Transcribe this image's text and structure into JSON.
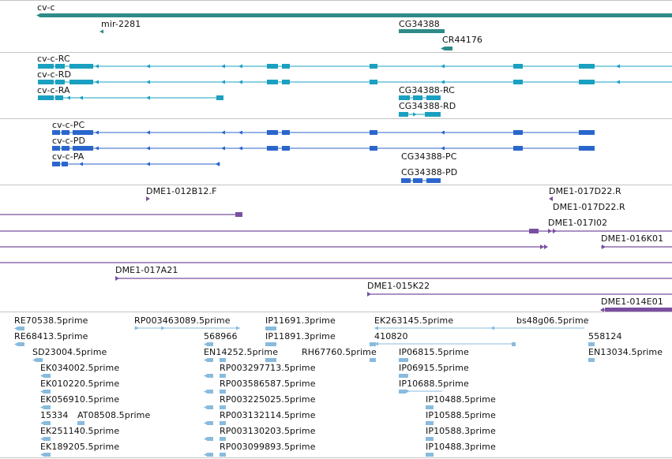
{
  "palette": {
    "gene": "#2e8b87",
    "transcript_rc": "#1aa0c0",
    "transcript_pc": "#2a66cc",
    "clone": "#7a4fa0",
    "est": "#88bbdd",
    "separator": "#c4c4c4"
  },
  "tracks": {
    "gene": {
      "labels": [
        "cv-c",
        "mir-2281",
        "CG34388",
        "CR44176"
      ]
    },
    "transcripts": {
      "labels": [
        "cv-c-RC",
        "cv-c-RD",
        "cv-c-RA",
        "CG34388-RC",
        "CG34388-RD"
      ]
    },
    "proteins": {
      "labels": [
        "cv-c-PC",
        "cv-c-PD",
        "cv-c-PA",
        "CG34388-PC",
        "CG34388-PD"
      ]
    },
    "clones": {
      "labels": [
        "DME1-012B12.F",
        "DME1-017D22.R",
        "DME1-017D22.R",
        "DME1-017I02",
        "DME1-016K01",
        "DME1-017A21",
        "DME1-015K22",
        "DME1-014E01"
      ]
    },
    "ests": {
      "labels": [
        "RE70538.5prime",
        "RE68413.5prime",
        "SD23004.5prime",
        "EK034002.5prime",
        "EK010220.5prime",
        "EK056910.5prime",
        "15334",
        "AT08508.5prime",
        "EK251140.5prime",
        "EK189205.5prime",
        "RP003463089.5prime",
        "568966",
        "EN14252.5prime",
        "RP003297713.5prime",
        "RP003586587.5prime",
        "RP003225025.5prime",
        "RP003132114.5prime",
        "RP003130203.5prime",
        "RP003099893.5prime",
        "IP11691.3prime",
        "IP11891.3prime",
        "RH67760.5prime",
        "EK263145.5prime",
        "410820",
        "IP06815.5prime",
        "IP06915.5prime",
        "IP10688.5prime",
        "IP10488.5prime",
        "IP10588.5prime",
        "IP10588.3prime",
        "IP10488.3prime",
        "bs48g06.5prime",
        "558124",
        "EN13034.5prime"
      ]
    }
  }
}
